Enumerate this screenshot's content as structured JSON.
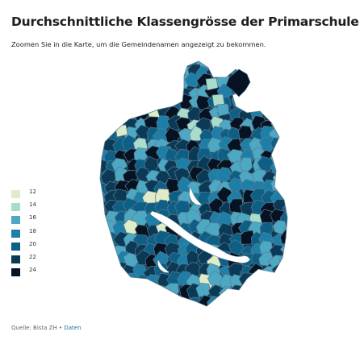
{
  "title": "Durchschnittliche Klassengrösse der Primarschule",
  "subtitle": "Zoomen Sie in die Karte, um die Gemeindenamen angezeigt zu bekommen.",
  "legend": [
    {
      "label": "12",
      "color": "#dfecc7"
    },
    {
      "label": "14",
      "color": "#a9dccb"
    },
    {
      "label": "16",
      "color": "#4da8c4"
    },
    {
      "label": "18",
      "color": "#1d7fa8"
    },
    {
      "label": "20",
      "color": "#0e5f86"
    },
    {
      "label": "22",
      "color": "#0b3a57"
    },
    {
      "label": "24",
      "color": "#061322"
    }
  ],
  "source": {
    "prefix": "Quelle: Bista ZH",
    "separator": " • ",
    "link": "Daten"
  },
  "colors": {
    "background": "#ffffff",
    "border": "#5a7c90"
  }
}
